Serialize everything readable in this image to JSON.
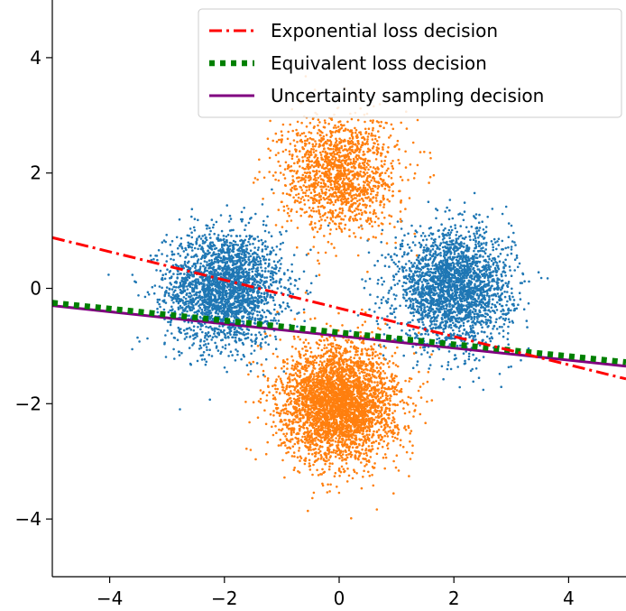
{
  "chart_data": {
    "type": "scatter",
    "title": "",
    "xlabel": "",
    "ylabel": "",
    "xlim": [
      -5,
      5
    ],
    "ylim": [
      -5,
      5
    ],
    "xticks": [
      -4,
      -2,
      0,
      2,
      4
    ],
    "yticks": [
      -4,
      -2,
      0,
      2,
      4
    ],
    "xtick_labels": [
      "−4",
      "−2",
      "0",
      "2",
      "4"
    ],
    "ytick_labels": [
      "−4",
      "−2",
      "0",
      "2",
      "4"
    ],
    "grid": false,
    "legend_position": "top-right",
    "clusters": [
      {
        "class": "blue",
        "center": [
          -2,
          0
        ],
        "spread": 0.5,
        "count": 2500
      },
      {
        "class": "blue",
        "center": [
          2,
          0
        ],
        "spread": 0.5,
        "count": 2500
      },
      {
        "class": "orange",
        "center": [
          0,
          2
        ],
        "spread": 0.5,
        "count": 1500
      },
      {
        "class": "orange",
        "center": [
          0,
          -2
        ],
        "spread": 0.5,
        "count": 3500
      }
    ],
    "class_colors": {
      "blue": "#1f77b4",
      "orange": "#ff7f0e"
    },
    "lines": [
      {
        "name": "Exponential loss decision",
        "color": "#ff0000",
        "style": "dashdot",
        "x": [
          -5,
          5
        ],
        "y": [
          0.88,
          -1.57
        ]
      },
      {
        "name": "Equivalent loss decision",
        "color": "#008000",
        "style": "dotted",
        "x": [
          -5,
          5
        ],
        "y": [
          -0.25,
          -1.28
        ]
      },
      {
        "name": "Uncertainty sampling decision",
        "color": "#800080",
        "style": "solid",
        "x": [
          -5,
          5
        ],
        "y": [
          -0.3,
          -1.35
        ]
      }
    ]
  }
}
